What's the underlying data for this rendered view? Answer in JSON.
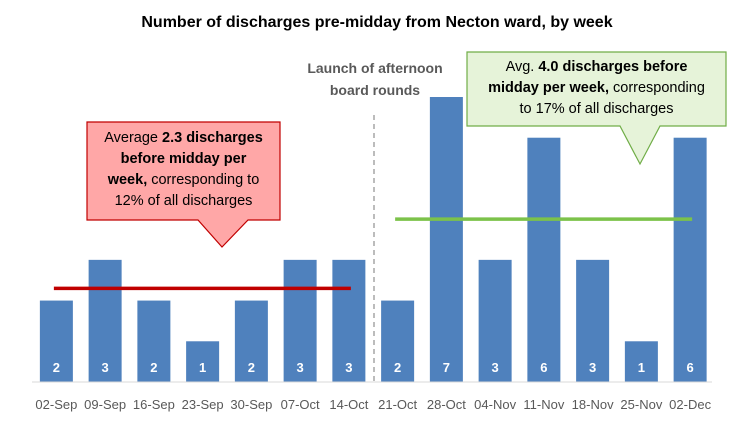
{
  "chart_data": {
    "type": "bar",
    "title": "Number of discharges pre-midday from Necton ward, by week",
    "categories": [
      "02-Sep",
      "09-Sep",
      "16-Sep",
      "23-Sep",
      "30-Sep",
      "07-Oct",
      "14-Oct",
      "21-Oct",
      "28-Oct",
      "04-Nov",
      "11-Nov",
      "18-Nov",
      "25-Nov",
      "02-Dec"
    ],
    "values": [
      2,
      3,
      2,
      1,
      2,
      3,
      3,
      2,
      7,
      3,
      6,
      3,
      1,
      6
    ],
    "ylim": [
      0,
      7
    ],
    "bar_color": "#4f81bd",
    "averages": [
      {
        "value": 2.3,
        "from": "02-Sep",
        "to": "14-Oct",
        "color": "#c00000"
      },
      {
        "value": 4.0,
        "from": "21-Oct",
        "to": "02-Dec",
        "color": "#7cc24a"
      }
    ],
    "divider": {
      "between": [
        "14-Oct",
        "21-Oct"
      ],
      "label_line1": "Launch of afternoon",
      "label_line2": "board rounds"
    },
    "annotations": {
      "before": {
        "l1_pre": "Average ",
        "l1_bold": "2.3 discharges",
        "l2_bold": "before midday per",
        "l3_bold": "week,",
        "l3_post": " corresponding to",
        "l4": "12% of all discharges",
        "fill": "#ffa7a7",
        "stroke": "#c00000"
      },
      "after": {
        "l1_pre": "Avg. ",
        "l1_bold": "4.0 discharges before",
        "l2_bold": "midday per week,",
        "l2_post": " corresponding",
        "l3": "to 17% of all discharges",
        "fill": "#e6f3d9",
        "stroke": "#70ad47"
      }
    }
  }
}
